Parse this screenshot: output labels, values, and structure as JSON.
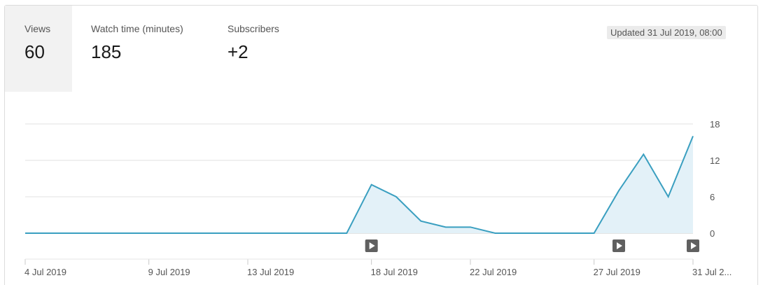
{
  "metrics": [
    {
      "label": "Views",
      "value": "60",
      "active": true
    },
    {
      "label": "Watch time (minutes)",
      "value": "185",
      "active": false
    },
    {
      "label": "Subscribers",
      "value": "+2",
      "active": false
    }
  ],
  "updated_text": "Updated 31 Jul 2019, 08:00",
  "colors": {
    "line": "#3a9fc0",
    "fill": "#e3f1f8",
    "grid": "#e0e0e0",
    "marker": "#606060"
  },
  "chart_data": {
    "type": "area",
    "x": [
      "4 Jul 2019",
      "5 Jul 2019",
      "6 Jul 2019",
      "7 Jul 2019",
      "8 Jul 2019",
      "9 Jul 2019",
      "10 Jul 2019",
      "11 Jul 2019",
      "12 Jul 2019",
      "13 Jul 2019",
      "14 Jul 2019",
      "15 Jul 2019",
      "16 Jul 2019",
      "17 Jul 2019",
      "18 Jul 2019",
      "19 Jul 2019",
      "20 Jul 2019",
      "21 Jul 2019",
      "22 Jul 2019",
      "23 Jul 2019",
      "24 Jul 2019",
      "25 Jul 2019",
      "26 Jul 2019",
      "27 Jul 2019",
      "28 Jul 2019",
      "29 Jul 2019",
      "30 Jul 2019",
      "31 Jul 2019"
    ],
    "values": [
      0,
      0,
      0,
      0,
      0,
      0,
      0,
      0,
      0,
      0,
      0,
      0,
      0,
      0,
      8,
      6,
      2,
      1,
      1,
      0,
      0,
      0,
      0,
      0,
      7,
      13,
      6,
      16
    ],
    "ylim": [
      0,
      18
    ],
    "yticks": [
      0,
      6,
      12,
      18
    ],
    "xtick_labels": [
      {
        "index": 0,
        "label": "4 Jul 2019"
      },
      {
        "index": 5,
        "label": "9 Jul 2019"
      },
      {
        "index": 9,
        "label": "13 Jul 2019"
      },
      {
        "index": 14,
        "label": "18 Jul 2019"
      },
      {
        "index": 18,
        "label": "22 Jul 2019"
      },
      {
        "index": 23,
        "label": "27 Jul 2019"
      },
      {
        "index": 27,
        "label": "31 Jul 2..."
      }
    ],
    "video_markers": [
      14,
      24,
      27
    ],
    "grid": true,
    "yaxis_side": "right"
  }
}
